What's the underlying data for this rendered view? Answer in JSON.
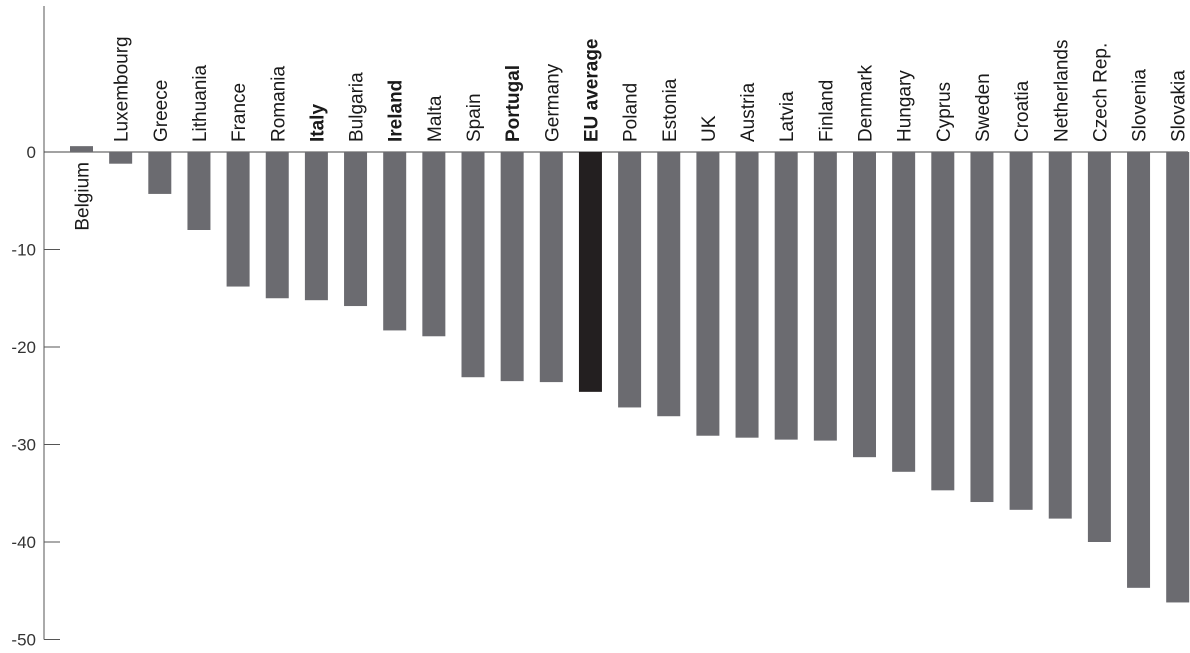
{
  "chart_data": {
    "type": "bar",
    "title": "",
    "xlabel": "",
    "ylabel": "",
    "ylim": [
      -50,
      15
    ],
    "yticks": [
      0,
      -10,
      -20,
      -30,
      -40,
      -50
    ],
    "grid": false,
    "categories": [
      "Belgium",
      "Luxembourg",
      "Greece",
      "Lithuania",
      "France",
      "Romania",
      "Italy",
      "Bulgaria",
      "Ireland",
      "Malta",
      "Spain",
      "Portugal",
      "Germany",
      "EU average",
      "Poland",
      "Estonia",
      "UK",
      "Austria",
      "Latvia",
      "Finland",
      "Denmark",
      "Hungary",
      "Cyprus",
      "Sweden",
      "Croatia",
      "Netherlands",
      "Czech Rep.",
      "Slovenia",
      "Slovakia"
    ],
    "values": [
      0.6,
      -1.2,
      -4.3,
      -8.0,
      -13.8,
      -15.0,
      -15.2,
      -15.8,
      -18.3,
      -18.9,
      -23.1,
      -23.5,
      -23.6,
      -24.6,
      -26.2,
      -27.1,
      -29.1,
      -29.3,
      -29.5,
      -29.6,
      -31.3,
      -32.8,
      -34.7,
      -35.9,
      -36.7,
      -37.6,
      -40.0,
      -44.7,
      -46.2
    ],
    "highlight": "EU average",
    "bold_labels": [
      "EU average",
      "Portugal",
      "Ireland",
      "Italy"
    ],
    "bar_color": "#6b6b70",
    "highlight_color": "#231f20"
  }
}
